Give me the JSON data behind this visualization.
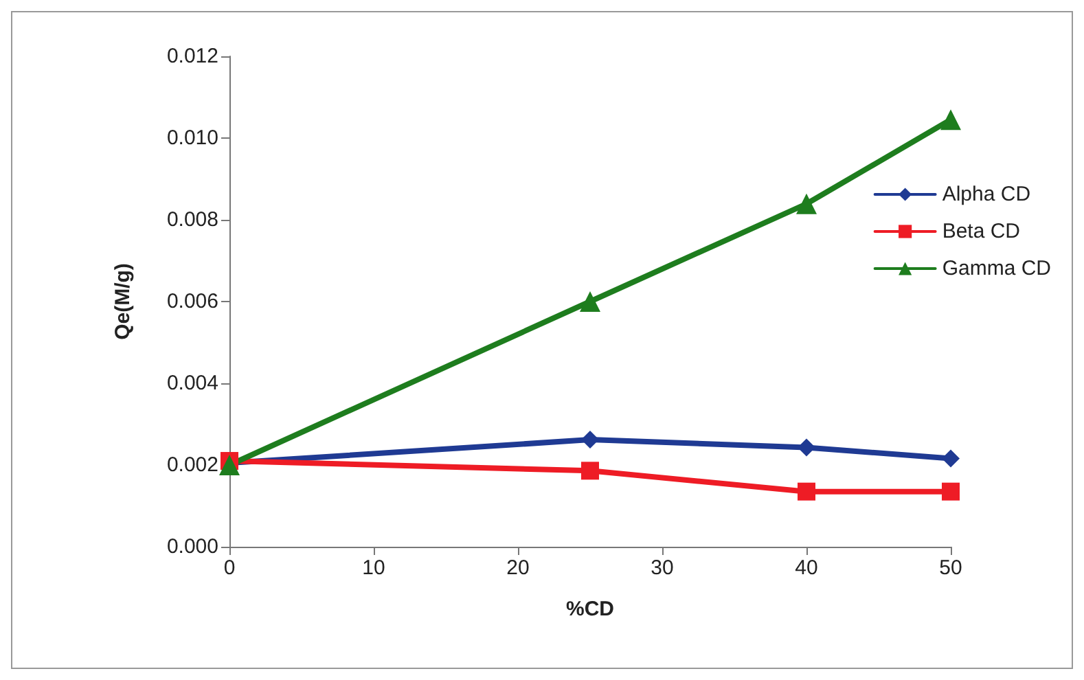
{
  "chart_data": {
    "type": "line",
    "xlabel": "%CD",
    "ylabel": "Qe(M/g)",
    "x": [
      0,
      25,
      40,
      50
    ],
    "xlim": [
      0,
      50
    ],
    "xticks": [
      0,
      10,
      20,
      30,
      40,
      50
    ],
    "ylim": [
      0,
      0.012
    ],
    "yticks": [
      {
        "value": 0,
        "label": "0.000"
      },
      {
        "value": 0.002,
        "label": "0.002"
      },
      {
        "value": 0.004,
        "label": "0.004"
      },
      {
        "value": 0.006,
        "label": "0.006"
      },
      {
        "value": 0.008,
        "label": "0.008"
      },
      {
        "value": 0.01,
        "label": "0.010"
      },
      {
        "value": 0.012,
        "label": "0.012"
      }
    ],
    "grid": false,
    "legend": "right",
    "line_style": "solid",
    "series": [
      {
        "name": "Alpha CD",
        "color": "#1f3a93",
        "marker": "diamond",
        "values": [
          0.00205,
          0.00262,
          0.00243,
          0.00216
        ]
      },
      {
        "name": "Beta CD",
        "color": "#ee1c25",
        "marker": "square",
        "values": [
          0.0021,
          0.00186,
          0.00135,
          0.00135
        ]
      },
      {
        "name": "Gamma CD",
        "color": "#1e7d1e",
        "marker": "triangle",
        "values": [
          0.002,
          0.006,
          0.00839,
          0.01045
        ]
      }
    ]
  }
}
